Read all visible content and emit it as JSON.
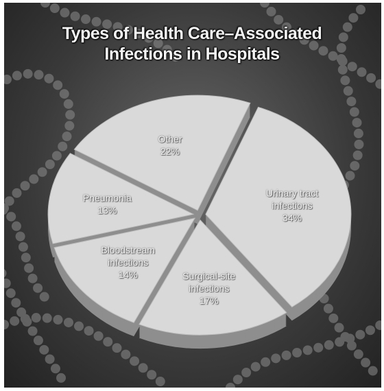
{
  "chart_data": {
    "type": "pie",
    "title": "Types of Health Care–Associated Infections in Hospitals",
    "categories": [
      "Other",
      "Urinary tract infections",
      "Surgical-site infections",
      "Bloodstream infections",
      "Pneumonia"
    ],
    "values": [
      22,
      34,
      17,
      14,
      13
    ],
    "value_labels": [
      "22%",
      "34%",
      "17%",
      "14%",
      "13%"
    ],
    "color": "#d9d9d9"
  }
}
